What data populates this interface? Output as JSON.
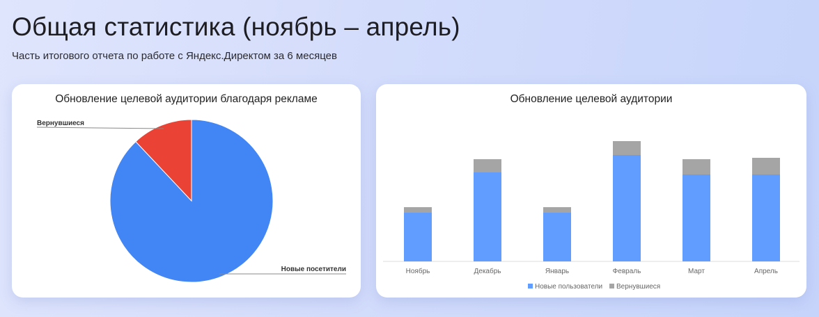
{
  "header": {
    "title": "Общая статистика (ноябрь – апрель)",
    "subtitle": "Часть итогового отчета по работе с Яндекс.Директом за 6 месяцев"
  },
  "chart_data": [
    {
      "type": "pie",
      "title": "Обновление целевой аудитории благодаря рекламе",
      "slices": [
        {
          "label": "Новые посетители",
          "value": 88,
          "color": "#4285f4"
        },
        {
          "label": "Вернувшиеся",
          "value": 12,
          "color": "#ea4335"
        }
      ],
      "legend": "labels"
    },
    {
      "type": "bar",
      "stacked": true,
      "title": "Обновление целевой аудитории",
      "categories": [
        "Ноябрь",
        "Декабрь",
        "Январь",
        "Февраль",
        "Март",
        "Апрель"
      ],
      "series": [
        {
          "name": "Новые пользователи",
          "color": "#619cff",
          "values": [
            70,
            128,
            70,
            153,
            125,
            125
          ]
        },
        {
          "name": "Вернувшиеся",
          "color": "#a5a5a5",
          "values": [
            8,
            19,
            8,
            20,
            22,
            24
          ]
        }
      ],
      "ylim": [
        0,
        180
      ],
      "grid": false,
      "legend": "bottom"
    }
  ]
}
